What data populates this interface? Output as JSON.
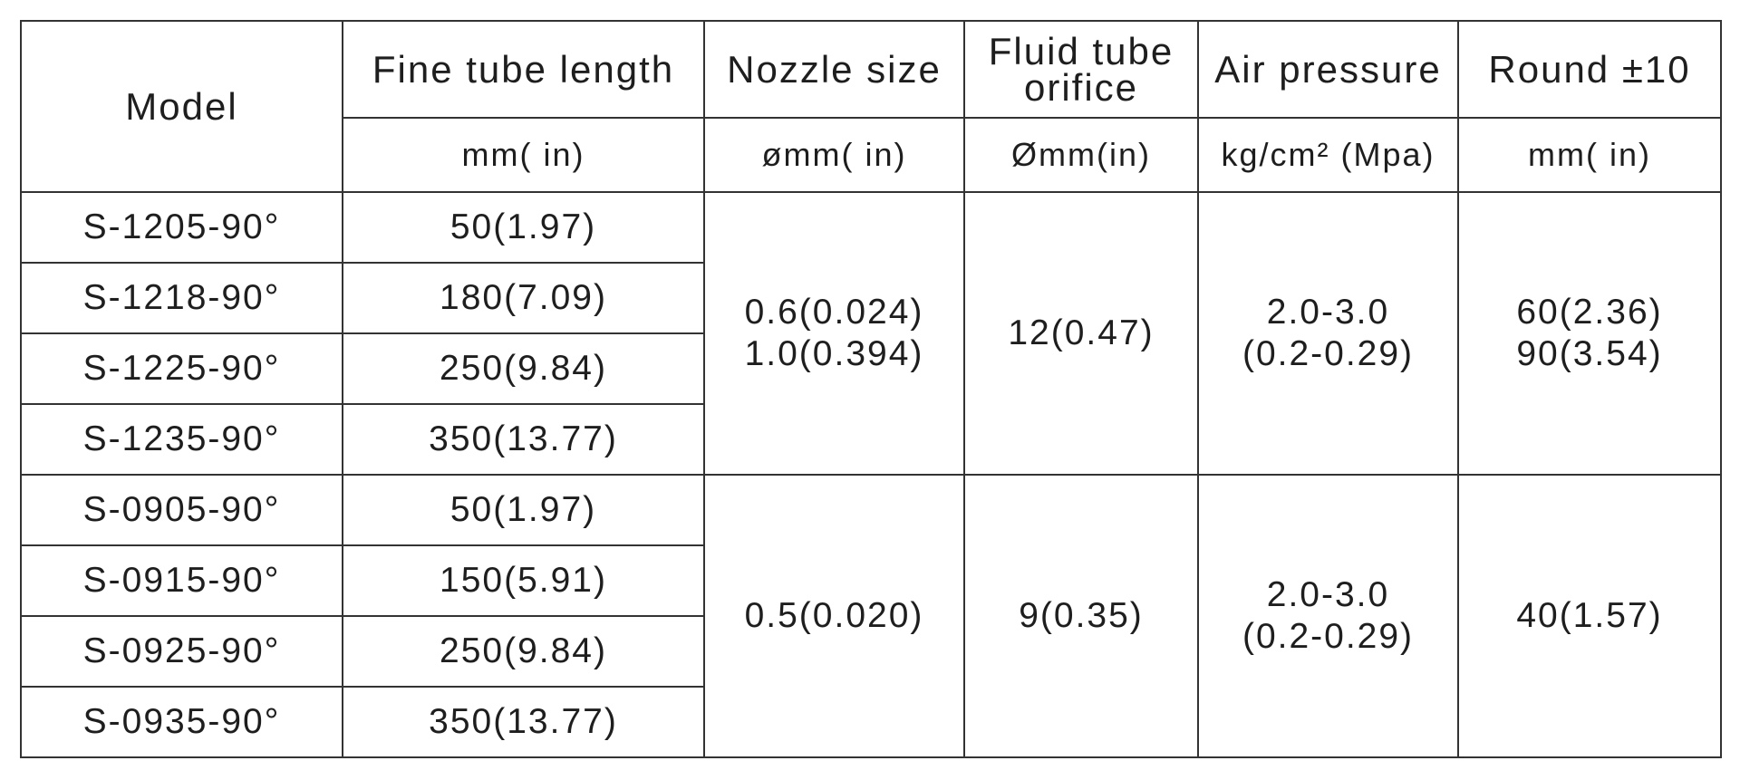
{
  "header": {
    "columns": [
      {
        "title": "Model"
      },
      {
        "title": "Fine tube length",
        "unit": "mm( in)"
      },
      {
        "title": "Nozzle size",
        "unit": "ømm( in)"
      },
      {
        "title": "Fluid tube orifice",
        "unit": "Ømm(in)"
      },
      {
        "title": "Air pressure",
        "unit": "kg/cm² (Mpa)"
      },
      {
        "title": "Round ±10",
        "unit": "mm( in)"
      }
    ]
  },
  "groups": [
    {
      "rows": [
        {
          "model": "S-1205-90°",
          "length": "50(1.97)"
        },
        {
          "model": "S-1218-90°",
          "length": "180(7.09)"
        },
        {
          "model": "S-1225-90°",
          "length": "250(9.84)"
        },
        {
          "model": "S-1235-90°",
          "length": "350(13.77)"
        }
      ],
      "nozzle": [
        "0.6(0.024)",
        "1.0(0.394)"
      ],
      "orifice": [
        "12(0.47)"
      ],
      "air": [
        "2.0-3.0",
        "(0.2-0.29)"
      ],
      "round": [
        "60(2.36)",
        "90(3.54)"
      ]
    },
    {
      "rows": [
        {
          "model": "S-0905-90°",
          "length": "50(1.97)"
        },
        {
          "model": "S-0915-90°",
          "length": "150(5.91)"
        },
        {
          "model": "S-0925-90°",
          "length": "250(9.84)"
        },
        {
          "model": "S-0935-90°",
          "length": "350(13.77)"
        }
      ],
      "nozzle": [
        "0.5(0.020)"
      ],
      "orifice": [
        "9(0.35)"
      ],
      "air": [
        "2.0-3.0",
        "(0.2-0.29)"
      ],
      "round": [
        "40(1.57)"
      ]
    }
  ]
}
